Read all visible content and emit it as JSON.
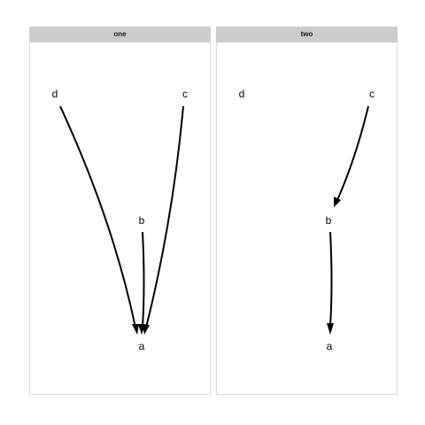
{
  "panels": [
    {
      "title": "one",
      "nodes": {
        "d": "d",
        "c": "c",
        "b": "b",
        "a": "a"
      },
      "edges": [
        {
          "from": "d",
          "to": "a"
        },
        {
          "from": "b",
          "to": "a"
        },
        {
          "from": "c",
          "to": "a"
        }
      ]
    },
    {
      "title": "two",
      "nodes": {
        "d": "d",
        "c": "c",
        "b": "b",
        "a": "a"
      },
      "edges": [
        {
          "from": "c",
          "to": "b"
        },
        {
          "from": "b",
          "to": "a"
        }
      ]
    }
  ]
}
